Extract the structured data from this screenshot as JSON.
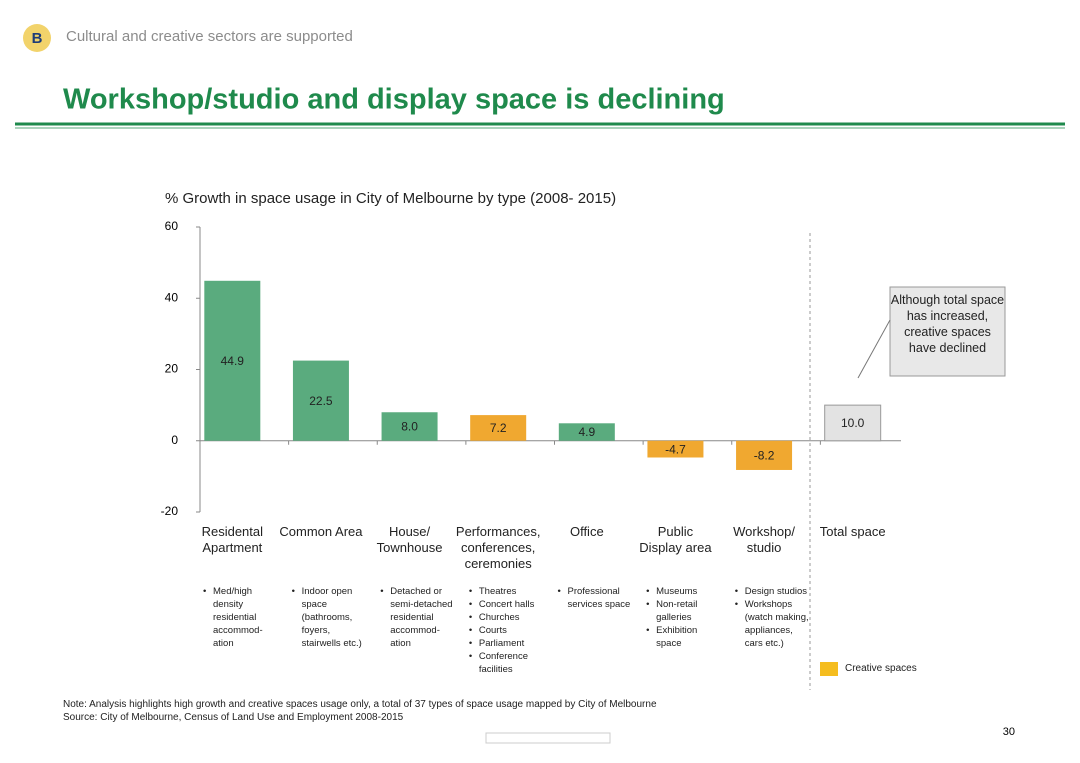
{
  "header": {
    "badge": "B",
    "section": "Cultural and creative sectors are supported",
    "title": "Workshop/studio and display space is declining"
  },
  "chart_data": {
    "type": "bar",
    "title": "% Growth in space usage in City of Melbourne by type (2008- 2015)",
    "categories": [
      "Residental\nApartment",
      "Common Area",
      "House/\nTownhouse",
      "Performances,\nconferences,\nceremonies",
      "Office",
      "Public\nDisplay area",
      "Workshop/\nstudio",
      "Total space"
    ],
    "values": [
      44.9,
      22.5,
      8.0,
      7.2,
      4.9,
      -4.7,
      -8.2,
      10.0
    ],
    "value_labels": [
      "44.9",
      "22.5",
      "8.0",
      "7.2",
      "4.9",
      "-4.7",
      "-8.2",
      "10.0"
    ],
    "colors": [
      "#5aab7e",
      "#5aab7e",
      "#5aab7e",
      "#f0a830",
      "#5aab7e",
      "#f0a830",
      "#f0a830",
      "#e3e3e3"
    ],
    "ylim": [
      -20,
      60
    ],
    "yticks": [
      -20,
      0,
      20,
      40,
      60
    ],
    "grid": false,
    "annotation": "Although total space has increased, creative spaces have declined",
    "legend": {
      "label": "Creative spaces",
      "color": "#f5bd1f"
    }
  },
  "descriptions": [
    [
      "Med/high density residential accommod-ation"
    ],
    [
      "Indoor open space (bathrooms, foyers, stairwells etc.)"
    ],
    [
      "Detached or semi-detached residential accommod-ation"
    ],
    [
      "Theatres",
      "Concert halls",
      "Churches",
      "Courts",
      "Parliament",
      "Conference facilities"
    ],
    [
      "Professional services space"
    ],
    [
      "Museums",
      "Non-retail galleries",
      "Exhibition space"
    ],
    [
      "Design studios",
      "Workshops (watch making, appliances, cars etc.)"
    ]
  ],
  "footer": {
    "note": "Note: Analysis highlights high growth and creative spaces usage only, a total of 37 types of space usage mapped by City of Melbourne",
    "source": "Source: City of Melbourne, Census of Land Use and Employment 2008-2015",
    "page_number": "30"
  }
}
